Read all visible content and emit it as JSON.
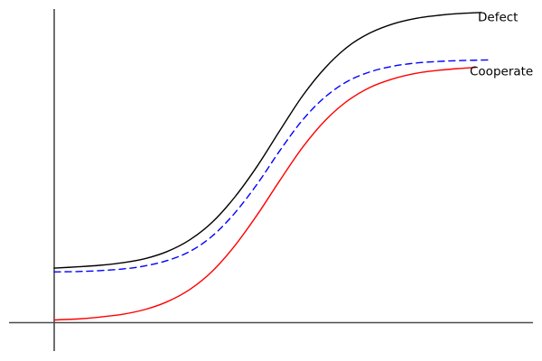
{
  "chart_data": {
    "type": "line",
    "title": "",
    "xlabel": "",
    "ylabel": "",
    "axes": {
      "style": "crossed axes (gnuplot style), no tick marks, no tick labels, no grid",
      "color": "#4a4a4a",
      "x_range": [
        0,
        1
      ],
      "y_range": [
        0,
        1
      ],
      "grid": false
    },
    "legend": {
      "position": "inline annotations at right ends of curves",
      "entries": [
        "Defect",
        "Cooperate"
      ]
    },
    "coordinate_note": "points are normalized: x 0-1 along x-axis from origin, y 0-1 up from x-axis",
    "series": [
      {
        "id": "defect",
        "label": "Defect",
        "color": "#000000",
        "line_style": "solid",
        "points": [
          [
            0.0,
            0.175
          ],
          [
            0.047,
            0.179
          ],
          [
            0.094,
            0.184
          ],
          [
            0.142,
            0.192
          ],
          [
            0.189,
            0.205
          ],
          [
            0.236,
            0.228
          ],
          [
            0.283,
            0.265
          ],
          [
            0.33,
            0.321
          ],
          [
            0.377,
            0.401
          ],
          [
            0.425,
            0.502
          ],
          [
            0.472,
            0.615
          ],
          [
            0.519,
            0.724
          ],
          [
            0.566,
            0.813
          ],
          [
            0.613,
            0.88
          ],
          [
            0.66,
            0.924
          ],
          [
            0.708,
            0.953
          ],
          [
            0.755,
            0.97
          ],
          [
            0.802,
            0.98
          ],
          [
            0.849,
            0.986
          ],
          [
            0.892,
            0.989
          ]
        ]
      },
      {
        "id": "middle-dashed",
        "label": "",
        "color": "#0000ff",
        "line_style": "dashed",
        "points": [
          [
            0.0,
            0.163
          ],
          [
            0.047,
            0.164
          ],
          [
            0.094,
            0.167
          ],
          [
            0.142,
            0.172
          ],
          [
            0.189,
            0.182
          ],
          [
            0.236,
            0.199
          ],
          [
            0.283,
            0.228
          ],
          [
            0.33,
            0.277
          ],
          [
            0.377,
            0.35
          ],
          [
            0.425,
            0.445
          ],
          [
            0.472,
            0.551
          ],
          [
            0.519,
            0.647
          ],
          [
            0.566,
            0.72
          ],
          [
            0.613,
            0.77
          ],
          [
            0.66,
            0.8
          ],
          [
            0.708,
            0.818
          ],
          [
            0.755,
            0.828
          ],
          [
            0.802,
            0.833
          ],
          [
            0.849,
            0.836
          ],
          [
            0.911,
            0.838
          ]
        ]
      },
      {
        "id": "cooperate",
        "label": "Cooperate",
        "color": "#ff0000",
        "line_style": "solid",
        "points": [
          [
            0.0,
            0.01
          ],
          [
            0.047,
            0.013
          ],
          [
            0.094,
            0.019
          ],
          [
            0.142,
            0.028
          ],
          [
            0.189,
            0.043
          ],
          [
            0.236,
            0.068
          ],
          [
            0.283,
            0.107
          ],
          [
            0.33,
            0.165
          ],
          [
            0.377,
            0.246
          ],
          [
            0.425,
            0.347
          ],
          [
            0.472,
            0.456
          ],
          [
            0.519,
            0.56
          ],
          [
            0.566,
            0.645
          ],
          [
            0.613,
            0.708
          ],
          [
            0.66,
            0.751
          ],
          [
            0.708,
            0.778
          ],
          [
            0.755,
            0.795
          ],
          [
            0.802,
            0.805
          ],
          [
            0.849,
            0.811
          ],
          [
            0.88,
            0.814
          ]
        ]
      }
    ],
    "annotations": [
      {
        "id": "defect-curve-label",
        "text": "Defect",
        "x": 0.885,
        "y": 0.961,
        "color": "#000000"
      },
      {
        "id": "cooperate-curve-label",
        "text": "Cooperate",
        "x": 0.868,
        "y": 0.789,
        "color": "#000000"
      }
    ]
  }
}
